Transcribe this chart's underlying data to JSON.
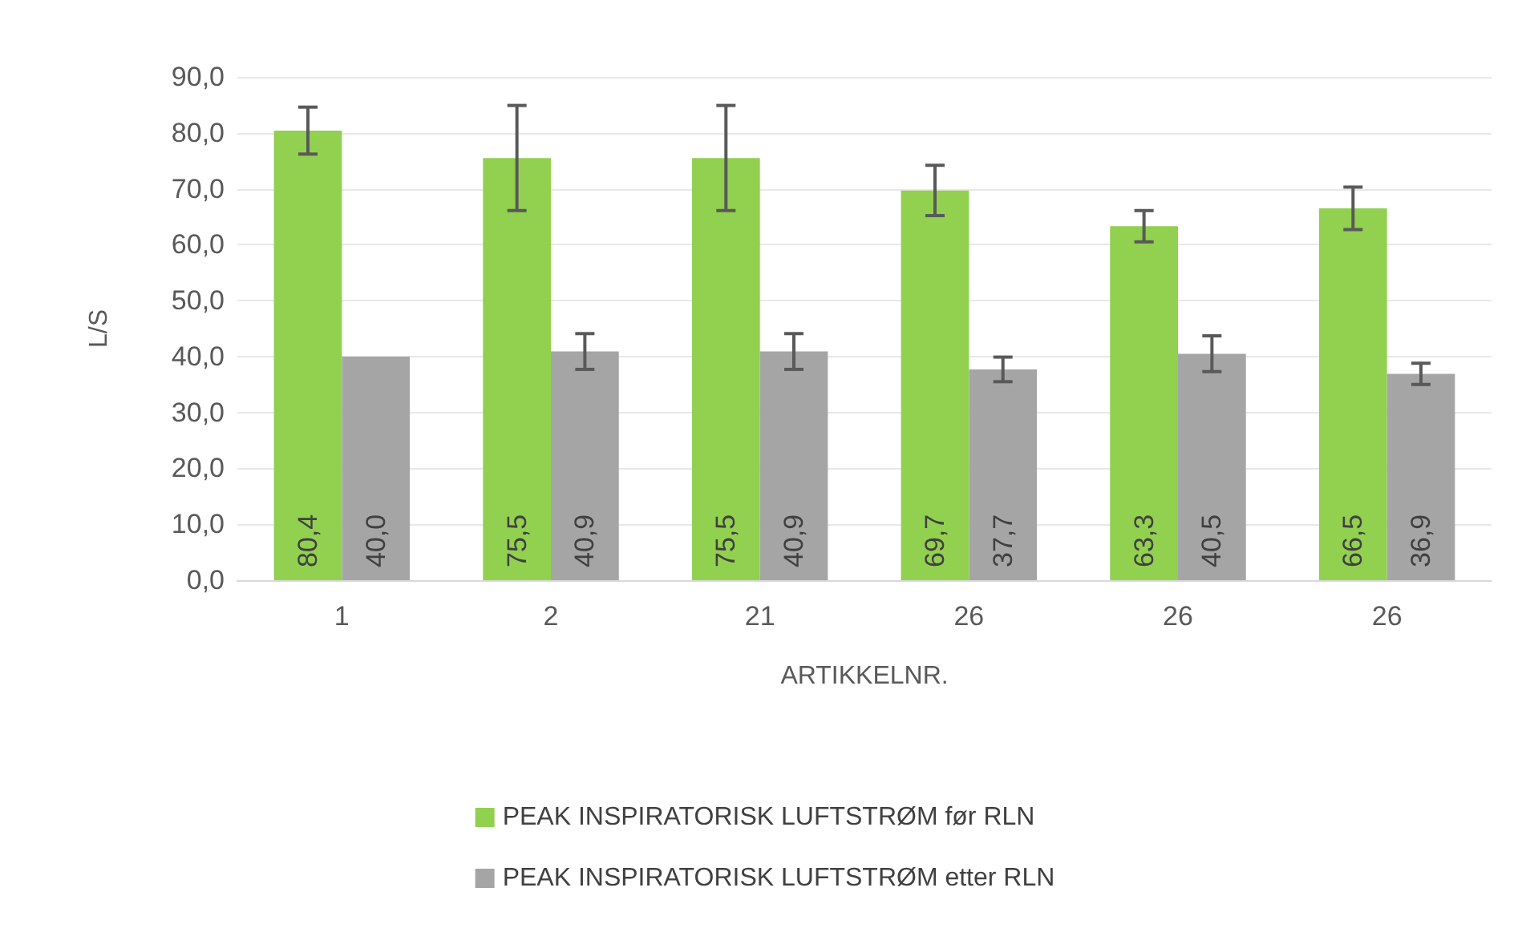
{
  "chart_data": {
    "type": "bar",
    "xlabel": "ARTIKKELNR.",
    "ylabel": "L/S",
    "categories": [
      "1",
      "2",
      "21",
      "26",
      "26",
      "26"
    ],
    "series": [
      {
        "name": "PEAK INSPIRATORISK LUFTSTRØM før RLN",
        "color": "#92d050",
        "values": [
          80.4,
          75.5,
          75.5,
          69.7,
          63.3,
          66.5
        ],
        "value_labels": [
          "80,4",
          "75,5",
          "75,5",
          "69,7",
          "63,3",
          "66,5"
        ],
        "errors": [
          4.2,
          9.4,
          9.4,
          4.5,
          2.8,
          3.8
        ]
      },
      {
        "name": "PEAK INSPIRATORISK LUFTSTRØM etter RLN",
        "color": "#a5a5a5",
        "values": [
          40.0,
          40.9,
          40.9,
          37.7,
          40.5,
          36.9
        ],
        "value_labels": [
          "40,0",
          "40,9",
          "40,9",
          "37,7",
          "40,5",
          "36,9"
        ],
        "errors": [
          null,
          3.2,
          3.2,
          2.2,
          3.2,
          1.9
        ]
      }
    ],
    "ylim": [
      0,
      90
    ],
    "yticks": [
      {
        "value": 0,
        "label": "0,0"
      },
      {
        "value": 10,
        "label": "10,0"
      },
      {
        "value": 20,
        "label": "20,0"
      },
      {
        "value": 30,
        "label": "30,0"
      },
      {
        "value": 40,
        "label": "40,0"
      },
      {
        "value": 50,
        "label": "50,0"
      },
      {
        "value": 60,
        "label": "60,0"
      },
      {
        "value": 70,
        "label": "70,0"
      },
      {
        "value": 80,
        "label": "80,0"
      },
      {
        "value": 90,
        "label": "90,0"
      }
    ],
    "grid": "y",
    "legend": "bottom"
  }
}
